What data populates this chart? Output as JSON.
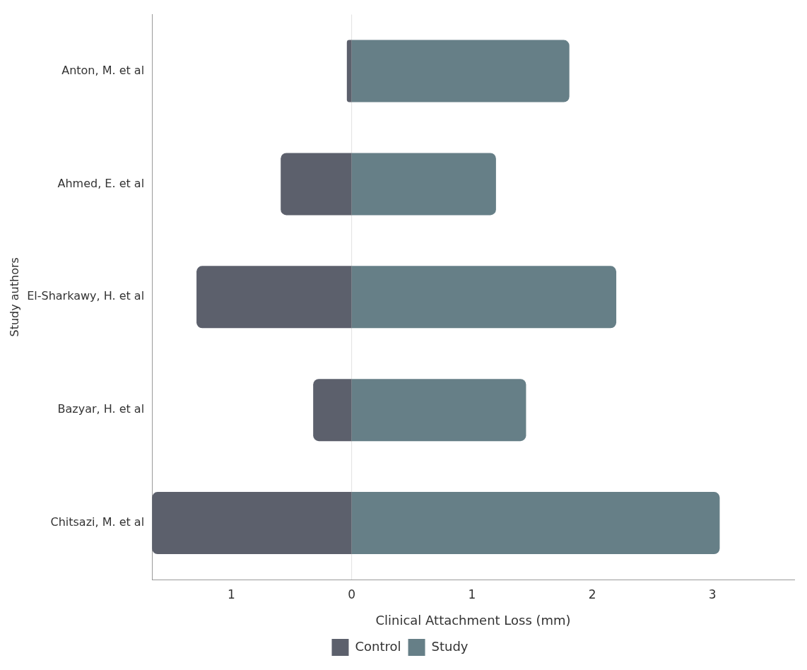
{
  "chart_data": {
    "type": "bar",
    "orientation": "horizontal",
    "stacked": true,
    "xlabel": "Clinical Attachment Loss (mm)",
    "ylabel": "Study authors",
    "categories": [
      "Anton, M. et al",
      "Ahmed, E. et al",
      "El-Sharkawy, H. et al",
      "Bazyar, H. et al",
      "Chitsazi, M. et al"
    ],
    "series": [
      {
        "name": "Control",
        "color": "#5c606c",
        "values": [
          -0.04,
          -0.59,
          -1.29,
          -0.32,
          -1.66
        ]
      },
      {
        "name": "Study",
        "color": "#667f87",
        "values": [
          1.81,
          1.2,
          2.2,
          1.45,
          3.06
        ]
      }
    ],
    "xlim": [
      -1.66,
      3.68
    ],
    "xticks": [
      {
        "value": -1,
        "label": "1"
      },
      0,
      1,
      2,
      3
    ],
    "ref_lines": [
      {
        "axis": "x",
        "value": 0,
        "color": "#e0e0e0"
      }
    ],
    "grid": false,
    "legend": "bottom"
  }
}
